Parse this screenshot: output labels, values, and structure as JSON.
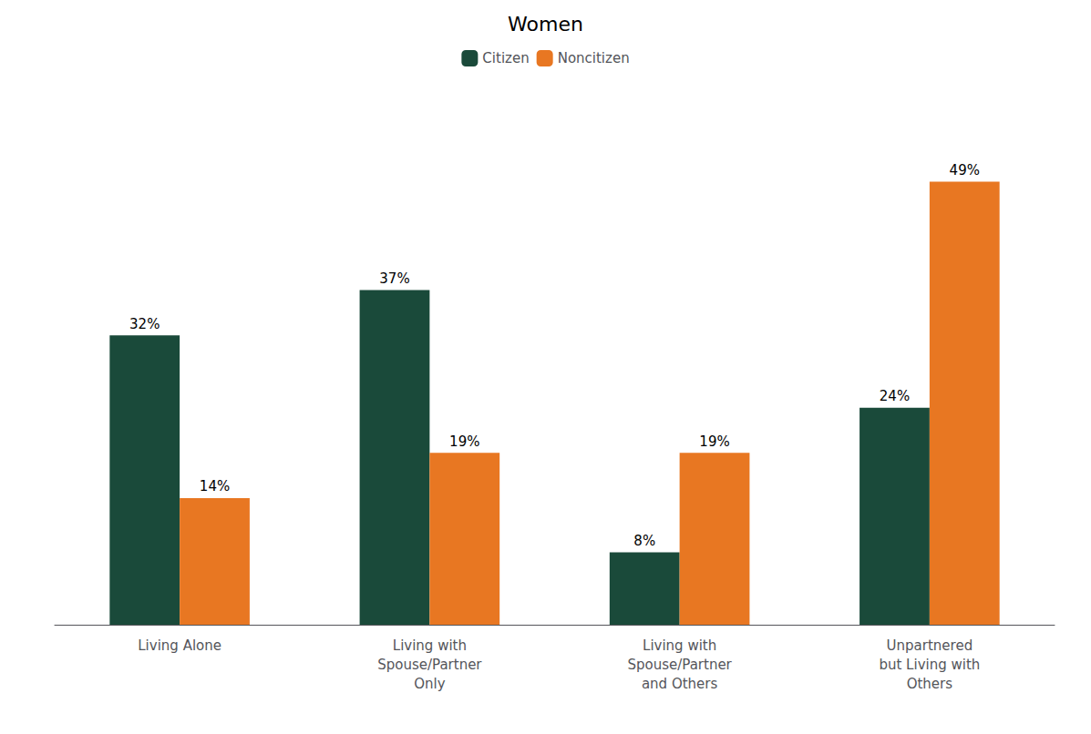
{
  "chart_data": {
    "type": "bar",
    "title": "Women",
    "categories": [
      "Living Alone",
      "Living with\nSpouse/Partner\nOnly",
      "Living with\nSpouse/Partner\nand Others",
      "Unpartnered\nbut Living with\nOthers"
    ],
    "series": [
      {
        "name": "Citizen",
        "color": "#1a4a3a",
        "values": [
          32,
          37,
          8,
          24
        ],
        "value_labels": [
          "32%",
          "37%",
          "8%",
          "24%"
        ]
      },
      {
        "name": "Noncitizen",
        "color": "#e87722",
        "values": [
          14,
          19,
          19,
          49
        ],
        "value_labels": [
          "14%",
          "19%",
          "19%",
          "49%"
        ]
      }
    ],
    "ylim": [
      0,
      58
    ],
    "grid": false,
    "legend": "top",
    "data_labels": true,
    "tick_labels": "x"
  }
}
